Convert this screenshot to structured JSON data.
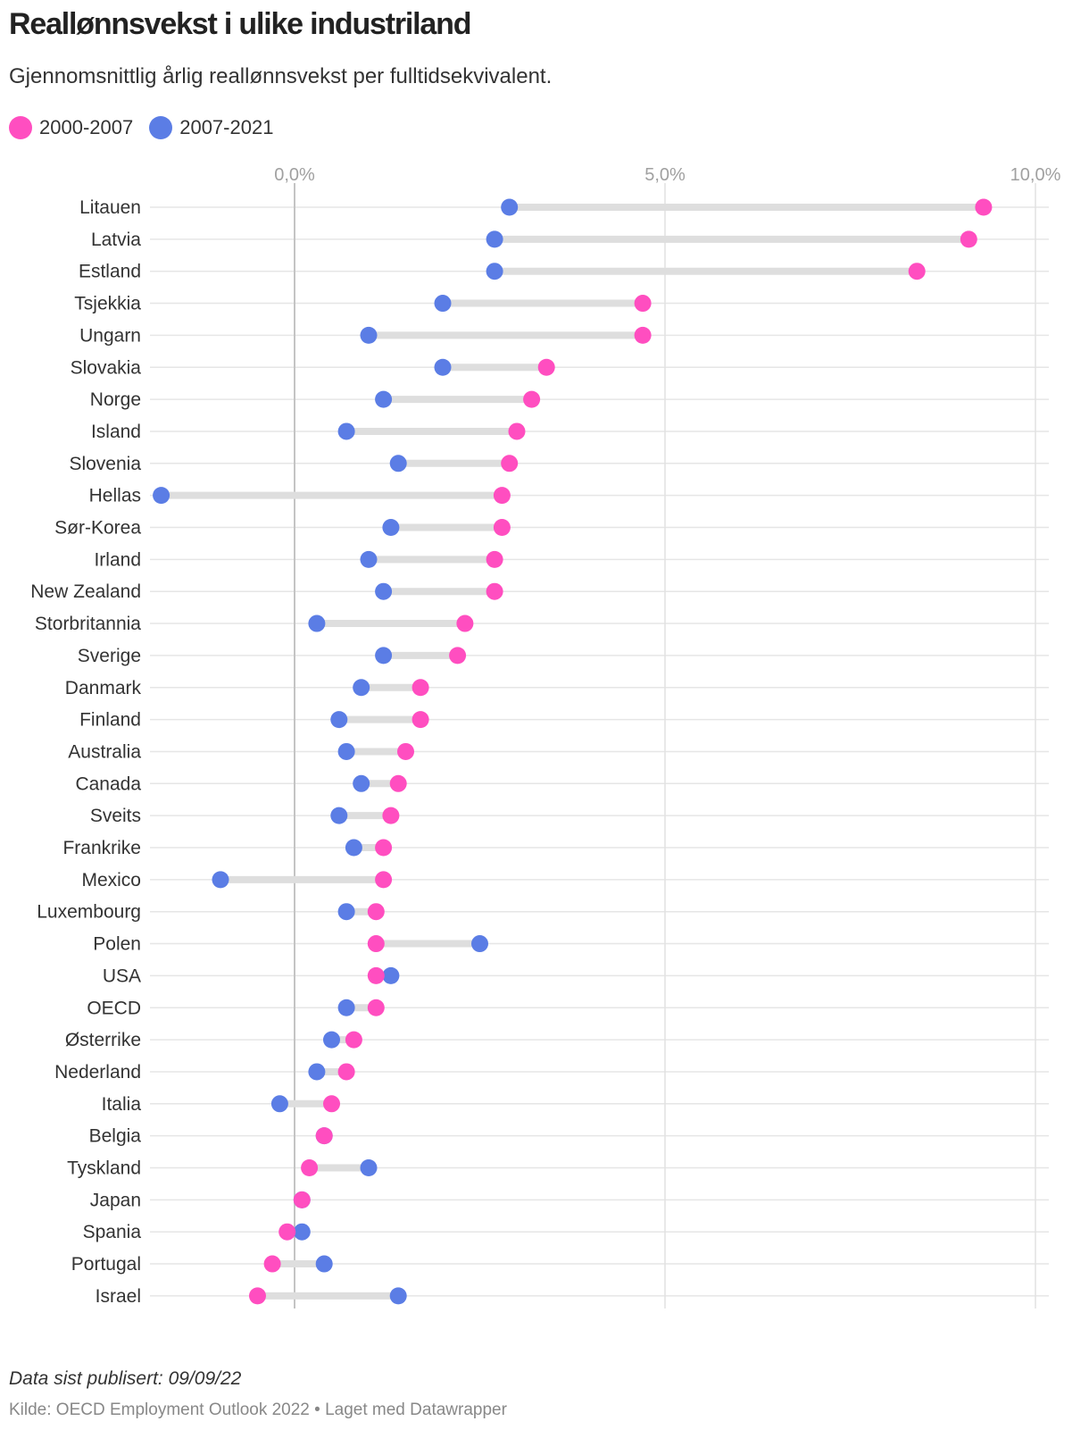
{
  "title": "Reallønnsvekst i ulike industriland",
  "subtitle": "Gjennomsnittlig årlig reallønnsvekst per fulltidsekvivalent.",
  "legend": [
    {
      "label": "2000-2007",
      "color": "#ff4ec0"
    },
    {
      "label": "2007-2021",
      "color": "#5b7de5"
    }
  ],
  "footer": {
    "date_note": "Data sist publisert: 09/09/22",
    "source": "Kilde: OECD Employment Outlook 2022 • Laget med Datawrapper"
  },
  "chart_data": {
    "type": "dot-range",
    "title": "Reallønnsvekst i ulike industriland",
    "xlim": [
      -1.95,
      10.2
    ],
    "xticks": [
      0,
      5,
      10
    ],
    "xtick_labels": [
      "0,0%",
      "5,0%",
      "10,0%"
    ],
    "grid": true,
    "categories": [
      "Litauen",
      "Latvia",
      "Estland",
      "Tsjekkia",
      "Ungarn",
      "Slovakia",
      "Norge",
      "Island",
      "Slovenia",
      "Hellas",
      "Sør-Korea",
      "Irland",
      "New Zealand",
      "Storbritannia",
      "Sverige",
      "Danmark",
      "Finland",
      "Australia",
      "Canada",
      "Sveits",
      "Frankrike",
      "Mexico",
      "Luxembourg",
      "Polen",
      "USA",
      "OECD",
      "Østerrike",
      "Nederland",
      "Italia",
      "Belgia",
      "Tyskland",
      "Japan",
      "Spania",
      "Portugal",
      "Israel"
    ],
    "series": [
      {
        "name": "2000-2007",
        "color": "#ff4ec0",
        "values": [
          9.3,
          9.1,
          8.4,
          4.7,
          4.7,
          3.4,
          3.2,
          3.0,
          2.9,
          2.8,
          2.8,
          2.7,
          2.7,
          2.3,
          2.2,
          1.7,
          1.7,
          1.5,
          1.4,
          1.3,
          1.2,
          1.2,
          1.1,
          1.1,
          1.1,
          1.1,
          0.8,
          0.7,
          0.5,
          0.4,
          0.2,
          0.1,
          -0.1,
          -0.3,
          -0.5
        ]
      },
      {
        "name": "2007-2021",
        "color": "#5b7de5",
        "values": [
          2.9,
          2.7,
          2.7,
          2.0,
          1.0,
          2.0,
          1.2,
          0.7,
          1.4,
          -1.8,
          1.3,
          1.0,
          1.2,
          0.3,
          1.2,
          0.9,
          0.6,
          0.7,
          0.9,
          0.6,
          0.8,
          -1.0,
          0.7,
          2.5,
          1.3,
          0.7,
          0.5,
          0.3,
          -0.2,
          0.4,
          1.0,
          0.1,
          0.1,
          0.4,
          1.4
        ]
      }
    ]
  }
}
